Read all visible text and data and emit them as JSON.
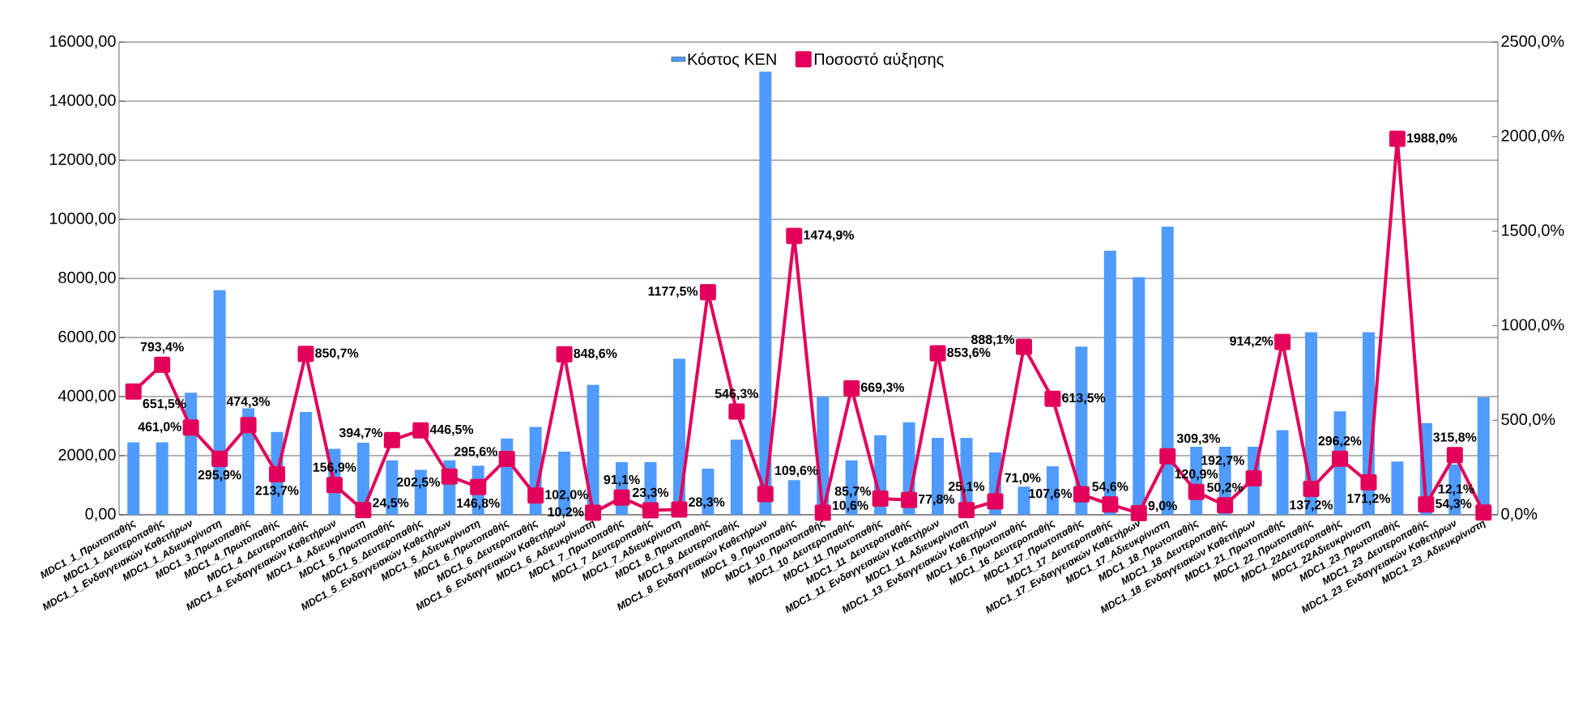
{
  "chart_data": {
    "type": "bar",
    "categories": [
      "MDC1_1_Πρωτοπαθής",
      "MDC1_1_Δευτεροπαθής",
      "MDC1_1_Ενδαγγειακών Καθετήρων",
      "MDC1_1_Αδιευκρίνιστη",
      "MDC1_3_Πρωτοπαθής",
      "MDC1_4_Πρωτοπαθής",
      "MDC1_4_Δευτεροπαθής",
      "MDC1_4_Ενδαγγειακών Καθετήρων",
      "MDC1_4_Αδιευκρίνιστη",
      "MDC1_5_Πρωτοπαθής",
      "MDC1_5_Δευτεροπαθής",
      "MDC1_5_Ενδαγγειακών Καθετήρων",
      "MDC1_5_Αδιευκρίνιστη",
      "MDC1_6_Πρωτοπαθής",
      "MDC1_6_Δευτεροπαθής",
      "MDC1_6_Ενδαγγειακών Καθετήρων",
      "MDC1_6_Αδιευκρίνιστη",
      "MDC1_7_Πρωτοπαθής",
      "MDC1_7_Δευτεροπαθής",
      "MDC1_7_Αδιευκρίνιστη",
      "MDC1_8_Πρωτοπαθής",
      "MDC1_8_Δευτεροπαθής",
      "MDC1_8_Ενδαγγειακών Καθετήρων",
      "MDC1_9_Πρωτοπαθής",
      "MDC1_10_Πρωτοπαθής",
      "MDC1_10_Δευτεροπαθής",
      "MDC1_11_Πρωτοπαθής",
      "MDC1_11_Δευτεροπαθής",
      "MDC1_11_Ενδαγγειακών Καθετήρων",
      "MDC1_11_Αδιευκρίνιστη",
      "MDC1_13_Ενδαγγειακών Καθετήρων",
      "MDC1_16_Πρωτοπαθής",
      "MDC1_16_Δευτεροπαθής",
      "MDC1_17_Πρωτοπαθής",
      "MDC1_17_Δευτεροπαθής",
      "MDC1_17_Ενδαγγειακών Καθετήρων",
      "MDC1_17_Αδιευκρίνιστη",
      "MDC1_18_Πρωτοπαθής",
      "MDC1_18_Δευτεροπαθής",
      "MDC1_18_Ενδαγγειακών Καθετήρων",
      "MDC1_21_Πρωτοπαθής",
      "MDC1_22_Πρωτοπαθής",
      "MDC1_22Δευτεροπαθής",
      "MDC1_22Αδιευκρίνιστη",
      "MDC1_23_Πρωτοπαθής",
      "MDC1_23_Δευτεροπαθής",
      "MDC1_23_Ενδαγγειακών Καθετήρων",
      "MDC1_23_Αδιευκρίνιστη"
    ],
    "series": [
      {
        "name": "Κόστος ΚΕΝ",
        "color": "#4f9bff",
        "values": [
          2450,
          2450,
          4130,
          7600,
          3600,
          2800,
          3480,
          2230,
          2440,
          1840,
          1520,
          1840,
          1660,
          2580,
          2970,
          2140,
          4400,
          1780,
          1780,
          5280,
          1560,
          2540,
          15000,
          1170,
          3990,
          1840,
          2690,
          3130,
          2600,
          2600,
          2110,
          950,
          1640,
          5690,
          8940,
          8040,
          9750,
          2300,
          2300,
          2300,
          2860,
          6180,
          3500,
          6180,
          1800,
          3100,
          1700,
          3970
        ]
      },
      {
        "name": "Ποσοστό αύξησης",
        "type": "line",
        "axis": "y2",
        "color": "#e3005a",
        "values": [
          651.5,
          793.4,
          461.0,
          295.9,
          474.3,
          213.7,
          850.7,
          156.9,
          24.5,
          394.7,
          446.5,
          202.5,
          146.8,
          295.6,
          102.0,
          848.6,
          10.2,
          91.1,
          23.3,
          28.3,
          1177.5,
          546.3,
          109.6,
          1474.9,
          10.6,
          669.3,
          85.7,
          77.8,
          853.6,
          25.1,
          71.0,
          888.1,
          613.5,
          107.6,
          54.6,
          9.0,
          309.3,
          120.9,
          50.2,
          192.7,
          914.2,
          137.2,
          296.2,
          171.2,
          1988.0,
          54.3,
          315.8,
          12.1
        ],
        "value_labels": [
          "651,5%",
          "793,4%",
          "461,0%",
          "295,9%",
          "474,3%",
          "213,7%",
          "850,7%",
          "156,9%",
          "24,5%",
          "394,7%",
          "446,5%",
          "202,5%",
          "146,8%",
          "295,6%",
          "102,0%",
          "848,6%",
          "10,2%",
          "91,1%",
          "23,3%",
          "28,3%",
          "1177,5%",
          "546,3%",
          "109,6%",
          "1474,9%",
          "10,6%",
          "669,3%",
          "85,7%",
          "77,8%",
          "853,6%",
          "25,1%",
          "71,0%",
          "888,1%",
          "613,5%",
          "107,6%",
          "54,6%",
          "9,0%",
          "309,3%",
          "120,9%",
          "50,2%",
          "192,7%",
          "914,2%",
          "137,2%",
          "296,2%",
          "171,2%",
          "1988,0%",
          "54,3%",
          "315,8%",
          "12,1%"
        ]
      }
    ],
    "ylim": [
      0,
      16000
    ],
    "yticks": [
      {
        "value": 0,
        "label": "0,00"
      },
      {
        "value": 2000,
        "label": "2000,00"
      },
      {
        "value": 4000,
        "label": "4000,00"
      },
      {
        "value": 6000,
        "label": "6000,00"
      },
      {
        "value": 8000,
        "label": "8000,00"
      },
      {
        "value": 10000,
        "label": "10000,00"
      },
      {
        "value": 12000,
        "label": "12000,00"
      },
      {
        "value": 14000,
        "label": "14000,00"
      },
      {
        "value": 16000,
        "label": "16000,00"
      }
    ],
    "y2lim": [
      0,
      2500
    ],
    "y2ticks": [
      {
        "value": 0,
        "label": "0,0%"
      },
      {
        "value": 500,
        "label": "500,0%"
      },
      {
        "value": 1000,
        "label": "1000,0%"
      },
      {
        "value": 1500,
        "label": "1500,0%"
      },
      {
        "value": 2000,
        "label": "2000,0%"
      },
      {
        "value": 2500,
        "label": "2500,0%"
      }
    ],
    "grid": "y",
    "legend": "top",
    "marker": "square"
  }
}
